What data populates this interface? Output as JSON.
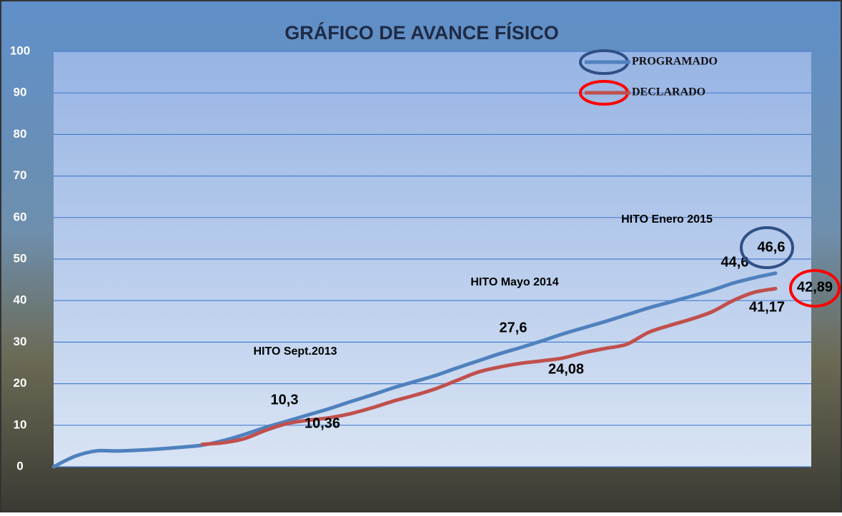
{
  "chart_data": {
    "type": "line",
    "title": "GRÁFICO DE AVANCE FÍSICO",
    "categories": [
      null,
      null,
      null,
      null,
      null,
      null,
      null,
      null,
      null,
      null,
      null,
      null,
      null,
      null,
      null,
      null,
      null,
      null,
      null,
      null,
      null,
      null,
      null,
      null,
      null,
      null,
      null,
      null,
      null,
      null,
      null,
      null,
      null,
      null,
      null
    ],
    "series": [
      {
        "name": "PROGRAMADO",
        "color": "#4f81bd",
        "values": [
          0,
          2.5,
          3.8,
          3.8,
          4.0,
          4.3,
          4.7,
          5.2,
          6.3,
          7.8,
          9.5,
          11,
          12.5,
          14,
          15.7,
          17.3,
          19,
          20.5,
          22,
          23.8,
          25.5,
          27.2,
          28.7,
          30.3,
          32,
          33.5,
          35,
          36.6,
          38.2,
          39.6,
          41,
          42.5,
          44.2,
          45.5,
          46.6
        ]
      },
      {
        "name": "DECLARADO",
        "color": "#c0504d",
        "values": [
          null,
          null,
          null,
          null,
          null,
          null,
          null,
          5.4,
          5.8,
          6.8,
          8.8,
          10.4,
          11.2,
          11.8,
          12.8,
          14.2,
          15.8,
          17.2,
          18.8,
          20.8,
          22.8,
          24,
          24.9,
          25.5,
          26.2,
          27.5,
          28.5,
          29.5,
          32.3,
          34,
          35.5,
          37.3,
          40,
          42,
          42.89
        ]
      }
    ],
    "ylim": [
      0,
      100
    ],
    "yticks": [
      0,
      10,
      20,
      30,
      40,
      50,
      60,
      70,
      80,
      90,
      100
    ],
    "grid": true,
    "legend": "top-right",
    "annotations": [
      "HITO Sept.2013",
      "HITO Mayo 2014",
      "HITO Enero 2015",
      "10,3",
      "10,36",
      "27,6",
      "24,08",
      "44,6",
      "46,6",
      "41,17",
      "42,89"
    ]
  }
}
